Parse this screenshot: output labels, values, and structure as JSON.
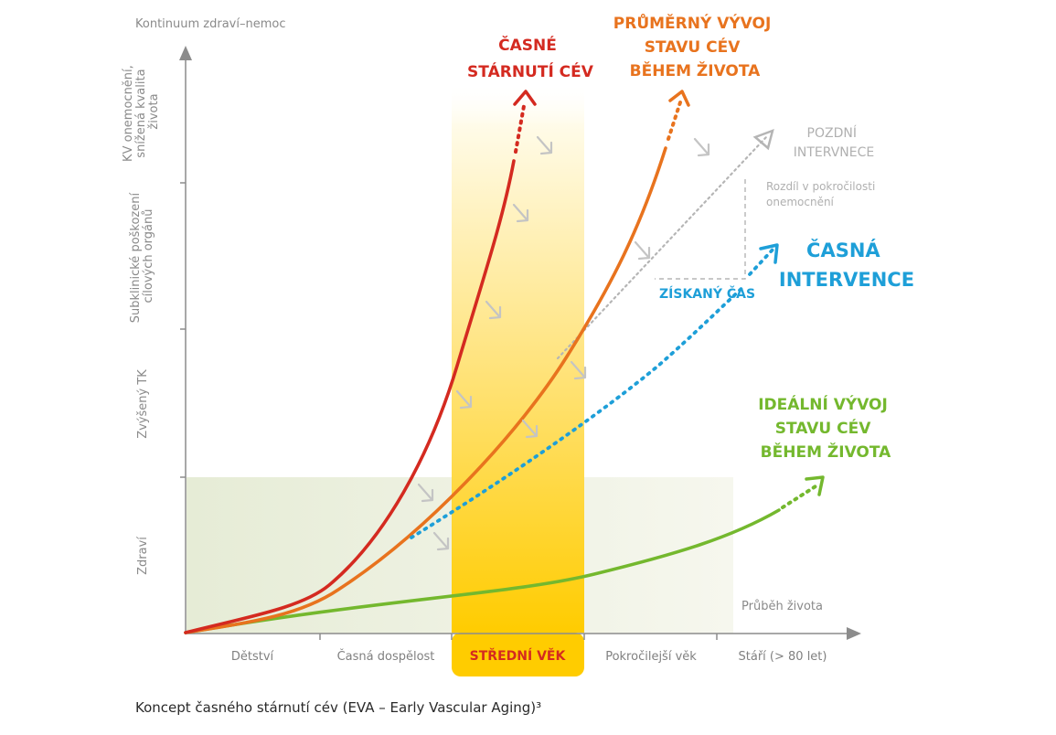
{
  "axes": {
    "y_title": "Kontinuum zdraví–nemoc",
    "x_title": "Průběh života",
    "y_levels": [
      [
        "Zdraví"
      ],
      [
        "Zvýšený TK"
      ],
      [
        "Subklinické poškození",
        "cílových orgánů"
      ],
      [
        "KV onemocnění,",
        "snížená kvalita",
        "života"
      ]
    ],
    "x_stages": [
      "Dětství",
      "Časná dospělost",
      "STŘEDNÍ VĚK",
      "Pokročilejší věk",
      "Stáří (> 80 let)"
    ]
  },
  "curves": {
    "early_aging": {
      "label": [
        "ČASNÉ",
        "STÁRNUTÍ CÉV"
      ],
      "color": "#d42a20"
    },
    "average": {
      "label": [
        "PRŮMĚRNÝ VÝVOJ",
        "STAVU CÉV",
        "BĚHEM ŽIVOTA"
      ],
      "color": "#e8731e"
    },
    "late_intervention": {
      "label": [
        "POZDNÍ",
        "INTERVNECE"
      ],
      "color": "#b5b5b5"
    },
    "early_intervention": {
      "label": [
        "ČASNÁ",
        "INTERVENCE"
      ],
      "color": "#1e9fd8"
    },
    "ideal": {
      "label": [
        "IDEÁLNÍ VÝVOJ",
        "STAVU CÉV",
        "BĚHEM ŽIVOTA"
      ],
      "color": "#74b82e"
    }
  },
  "annotations": {
    "difference": [
      "Rozdíl v pokročilosti",
      "onemocnění"
    ],
    "time_gained": "ZÍSKANÝ ČAS"
  },
  "colors": {
    "midlife_band": "#ffd21f",
    "healthy_zone": "#eef2e3",
    "axis": "#8c8c8c",
    "arrow_gray": "#c4c4c4"
  },
  "caption": "Koncept časného stárnutí cév (EVA – Early Vascular Aging)³"
}
